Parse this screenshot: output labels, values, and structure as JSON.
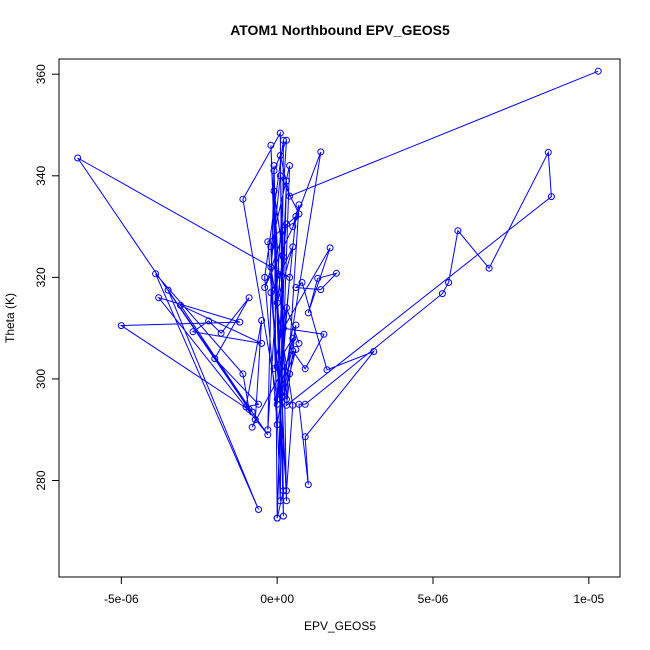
{
  "chart_data": {
    "type": "scatter",
    "title": "ATOM1 Northbound EPV_GEOS5",
    "xlabel": "EPV_GEOS5",
    "ylabel": "Theta (K)",
    "xlim": [
      -7e-06,
      1.1e-05
    ],
    "ylim": [
      261,
      363
    ],
    "x_ticks": [
      -5e-06,
      0,
      5e-06,
      1e-05
    ],
    "x_tick_labels": [
      "-5e-06",
      "0e+00",
      "5e-06",
      "1e-05"
    ],
    "y_ticks": [
      280,
      300,
      320,
      340,
      360
    ],
    "y_tick_labels": [
      "280",
      "300",
      "320",
      "340",
      "360"
    ],
    "grid": false,
    "legend": "none",
    "color": "#0000ff",
    "series": [
      {
        "points": [
          [
            1.03e-05,
            360.6
          ],
          [
            4e-07,
            336.0
          ],
          [
            1e-07,
            344.0
          ],
          [
            3e-07,
            276.0
          ],
          [
            -2e-07,
            346.0
          ],
          [
            2e-07,
            278.0
          ],
          [
            0.0,
            272.6
          ],
          [
            -1e-07,
            341.0
          ],
          [
            3e-07,
            347.0
          ],
          [
            -3e-07,
            290.0
          ],
          [
            -1e-07,
            342.0
          ],
          [
            2e-07,
            273.0
          ],
          [
            1e-07,
            348.4
          ],
          [
            -1.1e-06,
            335.4
          ],
          [
            0.0,
            296.0
          ],
          [
            3e-07,
            339.0
          ],
          [
            0.0,
            272.6
          ],
          [
            4e-07,
            342.0
          ],
          [
            -2e-07,
            326.0
          ],
          [
            1e-07,
            276.0
          ],
          [
            2e-07,
            347.0
          ],
          [
            -4e-07,
            320.0
          ],
          [
            0.0,
            291.0
          ],
          [
            1.4e-06,
            344.7
          ],
          [
            5e-07,
            330.0
          ],
          [
            7e-07,
            334.3
          ],
          [
            3e-07,
            296.0
          ],
          [
            -1e-07,
            337.0
          ],
          [
            2e-07,
            324.0
          ],
          [
            0.0,
            295.0
          ],
          [
            6e-07,
            332.0
          ],
          [
            -3e-07,
            327.0
          ],
          [
            3e-07,
            278.0
          ],
          [
            5e-07,
            294.8
          ],
          [
            -2e-07,
            322.0
          ],
          [
            1e-07,
            340.0
          ],
          [
            7e-07,
            332.5
          ],
          [
            -4e-07,
            318.0
          ],
          [
            3e-07,
            330.5
          ],
          [
            0.0,
            315.0
          ],
          [
            5e-07,
            326.0
          ],
          [
            -2e-07,
            317.0
          ],
          [
            1e-07,
            297.0
          ],
          [
            4e-07,
            320.0
          ],
          [
            -6.4e-06,
            343.5
          ],
          [
            -9e-07,
            294.0
          ],
          [
            -1.1e-06,
            301.0
          ],
          [
            -3.9e-06,
            320.7
          ],
          [
            -6e-07,
            274.3
          ],
          [
            -3.5e-06,
            317.5
          ],
          [
            -3e-07,
            289.0
          ],
          [
            -3.8e-06,
            316.0
          ],
          [
            -1.2e-06,
            311.2
          ],
          [
            -5e-06,
            310.5
          ],
          [
            -8e-07,
            293.5
          ],
          [
            -3.1e-06,
            314.5
          ],
          [
            -5e-07,
            307.0
          ],
          [
            -2.7e-06,
            309.3
          ],
          [
            -2.2e-06,
            311.4
          ],
          [
            -1.8e-06,
            309.0
          ],
          [
            -9e-07,
            316.0
          ],
          [
            -2e-06,
            304.0
          ],
          [
            -6e-07,
            295.0
          ],
          [
            -1e-06,
            294.5
          ],
          [
            -5e-07,
            311.5
          ],
          [
            -7e-07,
            292.0
          ],
          [
            -8e-07,
            290.5
          ],
          [
            5e-07,
            305.5
          ],
          [
            9e-07,
            302.0
          ],
          [
            1.5e-06,
            308.8
          ],
          [
            2e-07,
            310.0
          ],
          [
            1.7e-06,
            325.8
          ],
          [
            1e-06,
            313.0
          ],
          [
            1.3e-06,
            319.8
          ],
          [
            1.9e-06,
            320.8
          ],
          [
            1.4e-06,
            317.6
          ],
          [
            6e-07,
            318.0
          ],
          [
            8e-07,
            319.0
          ],
          [
            1.6e-06,
            301.8
          ],
          [
            3.1e-06,
            305.4
          ],
          [
            9e-07,
            288.6
          ],
          [
            1e-06,
            279.2
          ],
          [
            7e-07,
            295.0
          ],
          [
            9e-07,
            295.0
          ],
          [
            5.3e-06,
            316.8
          ],
          [
            5.5e-06,
            319.0
          ],
          [
            5.8e-06,
            329.2
          ],
          [
            6.8e-06,
            321.8
          ],
          [
            8.7e-06,
            344.6
          ],
          [
            8.8e-06,
            335.9
          ],
          [
            3e-07,
            294.8
          ],
          [
            6e-07,
            310.6
          ],
          [
            2e-07,
            296.6
          ],
          [
            4e-07,
            301.0
          ],
          [
            6e-07,
            305.8
          ],
          [
            1e-07,
            298.0
          ],
          [
            5e-07,
            308.0
          ],
          [
            -1e-07,
            302.0
          ],
          [
            3e-07,
            314.0
          ],
          [
            7e-07,
            307.0
          ]
        ]
      }
    ]
  }
}
